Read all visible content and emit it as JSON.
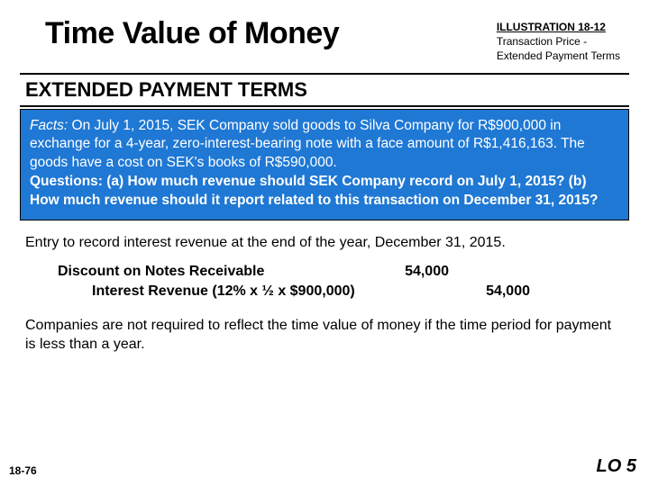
{
  "header": {
    "title": "Time Value of Money",
    "illustration_label": "ILLUSTRATION 18-12",
    "illustration_sub1": "Transaction Price -",
    "illustration_sub2": "Extended Payment Terms"
  },
  "section_header": "EXTENDED PAYMENT TERMS",
  "bluebox": {
    "facts_label": "Facts:",
    "facts_text": " On July 1, 2015, SEK Company sold goods to Silva Company for R$900,000 in exchange for a 4-year, zero-interest-bearing note with a face amount of R$1,416,163. The goods have a cost on SEK's books of R$590,000.",
    "questions_label": "Questions:",
    "questions_text": " (a) How much revenue should SEK Company record on July 1, 2015? (b) How much revenue should it report related to this transaction on December 31, 2015?"
  },
  "entry_intro": "Entry to record interest revenue at the end of the year, December 31, 2015.",
  "journal": {
    "debit_account": "Discount on Notes Receivable",
    "debit_amount": "54,000",
    "credit_account": "Interest Revenue (12% x ½ x $900,000)",
    "credit_amount": "54,000"
  },
  "note": "Companies are not required to reflect the time value of money if the time period for payment is less than a year.",
  "footer": {
    "page": "18-76",
    "lo": "LO 5"
  },
  "colors": {
    "bluebox_bg": "#1f78d4",
    "text": "#000000",
    "background": "#ffffff"
  }
}
